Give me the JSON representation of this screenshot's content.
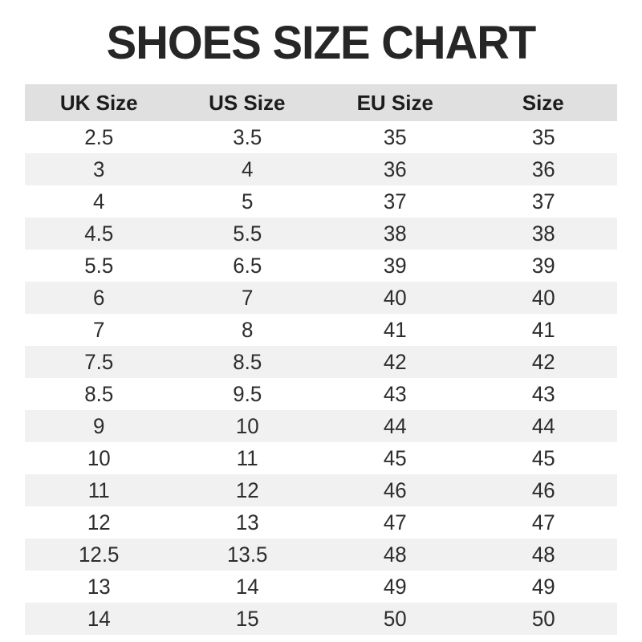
{
  "title": "SHOES SIZE CHART",
  "colors": {
    "title": "#262626",
    "header_bg": "#e0e0e0",
    "header_text": "#1c1c1c",
    "row_alt_bg": "#f1f1f1",
    "cell_text": "#2d2d2d"
  },
  "chart_data": {
    "type": "table",
    "title": "SHOES SIZE CHART",
    "columns": [
      "UK Size",
      "US Size",
      "EU Size",
      "Size"
    ],
    "rows": [
      [
        "2.5",
        "3.5",
        "35",
        "35"
      ],
      [
        "3",
        "4",
        "36",
        "36"
      ],
      [
        "4",
        "5",
        "37",
        "37"
      ],
      [
        "4.5",
        "5.5",
        "38",
        "38"
      ],
      [
        "5.5",
        "6.5",
        "39",
        "39"
      ],
      [
        "6",
        "7",
        "40",
        "40"
      ],
      [
        "7",
        "8",
        "41",
        "41"
      ],
      [
        "7.5",
        "8.5",
        "42",
        "42"
      ],
      [
        "8.5",
        "9.5",
        "43",
        "43"
      ],
      [
        "9",
        "10",
        "44",
        "44"
      ],
      [
        "10",
        "11",
        "45",
        "45"
      ],
      [
        "11",
        "12",
        "46",
        "46"
      ],
      [
        "12",
        "13",
        "47",
        "47"
      ],
      [
        "12.5",
        "13.5",
        "48",
        "48"
      ],
      [
        "13",
        "14",
        "49",
        "49"
      ],
      [
        "14",
        "15",
        "50",
        "50"
      ]
    ],
    "layout": {
      "striped": true,
      "stripe_pattern": "even-rows-gray",
      "columns_equal_width": true,
      "text_align": "center"
    }
  }
}
